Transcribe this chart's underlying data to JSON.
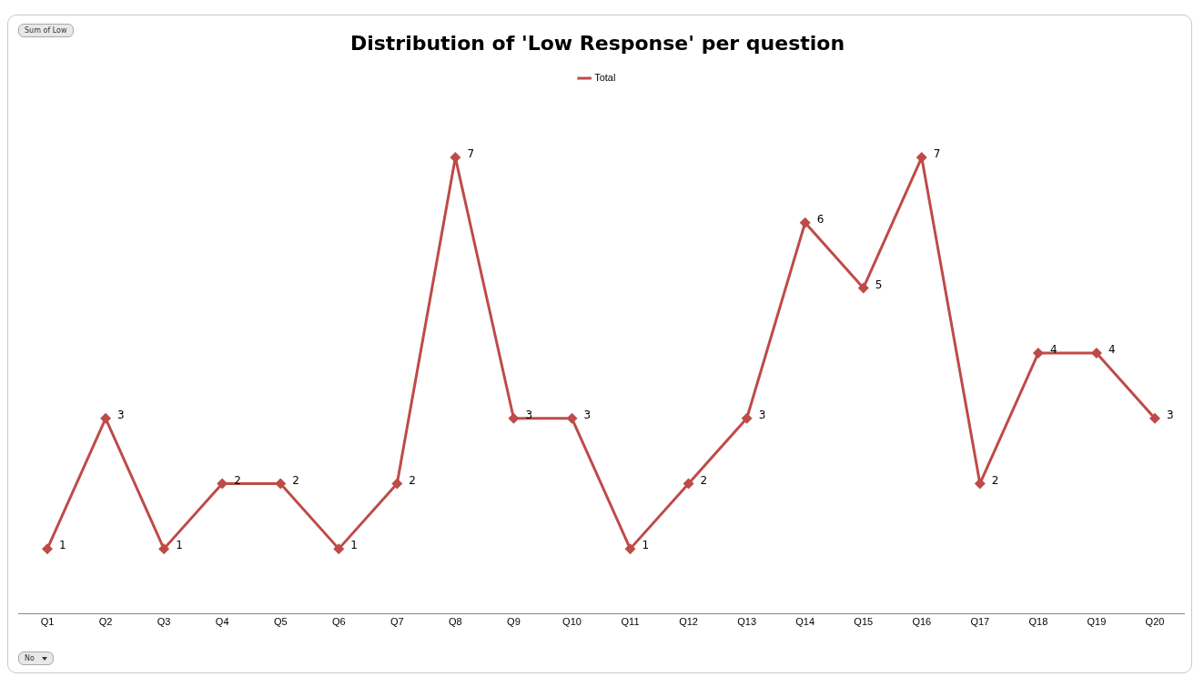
{
  "chart_data": {
    "type": "line",
    "title": "Distribution of 'Low Response' per question",
    "categories": [
      "Q1",
      "Q2",
      "Q3",
      "Q4",
      "Q5",
      "Q6",
      "Q7",
      "Q8",
      "Q9",
      "Q10",
      "Q11",
      "Q12",
      "Q13",
      "Q14",
      "Q15",
      "Q16",
      "Q17",
      "Q18",
      "Q19",
      "Q20"
    ],
    "series": [
      {
        "name": "Total",
        "color": "#be4b48",
        "values": [
          1,
          3,
          1,
          2,
          2,
          1,
          2,
          7,
          3,
          3,
          1,
          2,
          3,
          6,
          5,
          7,
          2,
          4,
          4,
          3
        ]
      }
    ],
    "tick_labels": "x",
    "grid": false,
    "legend": "top",
    "marker": "diamond",
    "line_style": "solid",
    "data_labels": true,
    "annotations": [
      "Sum of Low",
      "No"
    ]
  }
}
